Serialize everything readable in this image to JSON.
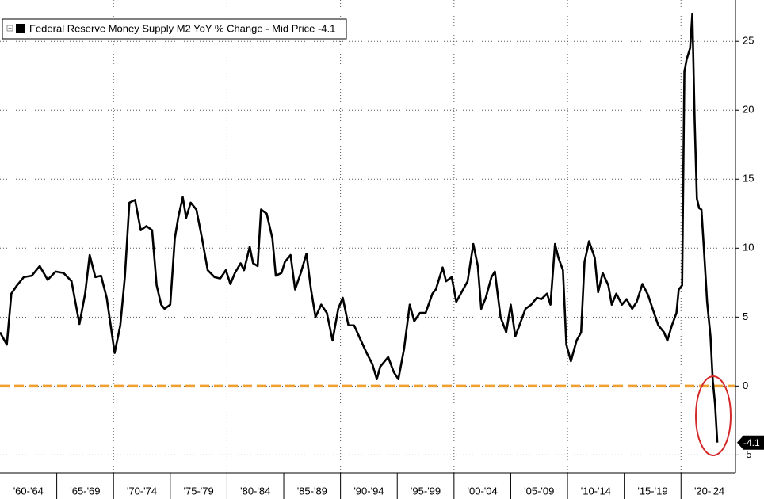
{
  "chart_data": {
    "type": "line",
    "series": [
      {
        "name": "Federal Reserve Money Supply M2 YoY % Change - Mid Price -4.1",
        "color": "#000000",
        "x": [
          1960.0,
          1960.6,
          1961.0,
          1961.5,
          1962.1,
          1962.8,
          1963.5,
          1964.2,
          1964.9,
          1965.6,
          1966.3,
          1967.0,
          1967.5,
          1967.9,
          1968.4,
          1968.9,
          1969.4,
          1970.1,
          1970.6,
          1971.0,
          1971.4,
          1971.9,
          1972.4,
          1972.9,
          1973.4,
          1973.8,
          1974.2,
          1974.5,
          1975.0,
          1975.4,
          1975.7,
          1976.1,
          1976.4,
          1976.8,
          1977.3,
          1977.8,
          1978.3,
          1978.9,
          1979.4,
          1979.9,
          1980.3,
          1980.7,
          1981.2,
          1981.5,
          1982.0,
          1982.3,
          1982.7,
          1983.0,
          1983.5,
          1984.0,
          1984.3,
          1984.8,
          1985.1,
          1985.6,
          1986.0,
          1986.5,
          1987.0,
          1987.4,
          1987.8,
          1988.3,
          1988.8,
          1989.3,
          1989.8,
          1990.2,
          1990.7,
          1991.2,
          1991.8,
          1992.3,
          1992.8,
          1993.2,
          1993.5,
          1994.2,
          1994.7,
          1995.1,
          1995.6,
          1996.1,
          1996.5,
          1997.0,
          1997.5,
          1998.1,
          1998.4,
          1999.0,
          1999.3,
          1999.8,
          2000.2,
          2000.6,
          2001.2,
          2001.7,
          2002.1,
          2002.4,
          2002.8,
          2003.3,
          2003.6,
          2004.1,
          2004.6,
          2005.0,
          2005.4,
          2005.9,
          2006.3,
          2006.8,
          2007.3,
          2007.7,
          2008.2,
          2008.5,
          2008.9,
          2009.2,
          2009.6,
          2009.9,
          2010.3,
          2010.8,
          2011.2,
          2011.5,
          2011.9,
          2012.4,
          2012.7,
          2013.1,
          2013.6,
          2013.9,
          2014.3,
          2014.8,
          2015.2,
          2015.7,
          2016.1,
          2016.6,
          2017.1,
          2017.5,
          2018.0,
          2018.5,
          2018.8,
          2019.2,
          2019.6,
          2019.8,
          2020.1,
          2020.3,
          2020.5,
          2020.8,
          2021.0,
          2021.2,
          2021.4,
          2021.6,
          2021.8,
          2022.0,
          2022.3,
          2022.6,
          2022.8,
          2023.0,
          2023.2
        ],
        "values": [
          3.9,
          3.0,
          6.7,
          7.3,
          7.9,
          8.0,
          8.7,
          7.7,
          8.3,
          8.2,
          7.6,
          4.5,
          6.7,
          9.5,
          7.9,
          8.0,
          6.4,
          2.4,
          4.4,
          7.9,
          13.3,
          13.5,
          11.3,
          11.6,
          11.3,
          7.3,
          5.9,
          5.6,
          5.9,
          10.7,
          12.2,
          13.7,
          12.2,
          13.3,
          12.8,
          10.7,
          8.4,
          7.9,
          7.8,
          8.4,
          7.4,
          8.2,
          8.9,
          8.4,
          10.1,
          8.9,
          8.7,
          12.8,
          12.5,
          10.7,
          8.0,
          8.2,
          9.0,
          9.5,
          7.0,
          8.2,
          9.6,
          7.0,
          5.0,
          5.9,
          5.3,
          3.3,
          5.6,
          6.4,
          4.4,
          4.4,
          3.3,
          2.4,
          1.6,
          0.5,
          1.4,
          2.1,
          1.0,
          0.5,
          2.7,
          5.9,
          4.7,
          5.3,
          5.3,
          6.7,
          7.0,
          8.6,
          7.6,
          7.9,
          6.1,
          6.7,
          7.6,
          10.3,
          8.7,
          5.6,
          6.4,
          7.9,
          8.3,
          5.0,
          3.9,
          5.9,
          3.6,
          4.7,
          5.6,
          5.9,
          6.4,
          6.3,
          6.7,
          5.9,
          10.3,
          9.3,
          8.4,
          3.0,
          1.8,
          3.3,
          3.9,
          9.0,
          10.5,
          9.3,
          6.8,
          8.2,
          7.3,
          5.9,
          6.7,
          5.9,
          6.3,
          5.6,
          6.1,
          7.4,
          6.6,
          5.6,
          4.4,
          3.9,
          3.3,
          4.4,
          5.3,
          7.0,
          7.3,
          22.8,
          23.7,
          24.5,
          27.0,
          19.4,
          13.6,
          12.9,
          12.8,
          10.2,
          6.1,
          3.6,
          0.4,
          -1.3,
          -4.1
        ]
      }
    ],
    "xlim": [
      1960,
      2024.8
    ],
    "xticks": [
      {
        "value": 1962.5,
        "label": "'60-'64"
      },
      {
        "value": 1967.5,
        "label": "'65-'69"
      },
      {
        "value": 1972.5,
        "label": "'70-'74"
      },
      {
        "value": 1977.5,
        "label": "'75-'79"
      },
      {
        "value": 1982.5,
        "label": "'80-'84"
      },
      {
        "value": 1987.5,
        "label": "'85-'89"
      },
      {
        "value": 1992.5,
        "label": "'90-'94"
      },
      {
        "value": 1997.5,
        "label": "'95-'99"
      },
      {
        "value": 2002.5,
        "label": "'00-'04"
      },
      {
        "value": 2007.5,
        "label": "'05-'09"
      },
      {
        "value": 2012.5,
        "label": "'10-'14"
      },
      {
        "value": 2017.5,
        "label": "'15-'19"
      },
      {
        "value": 2022.5,
        "label": "'20-'24"
      }
    ],
    "x_gridlines": [
      1970,
      1980,
      1990,
      2000,
      2010,
      2020
    ],
    "ylim": [
      -6.3,
      28
    ],
    "yticks": [
      25,
      20,
      15,
      10,
      5,
      0,
      -5
    ],
    "grid": true,
    "y_axis_side": "right",
    "reference_line": {
      "value": 0,
      "color": "#f0a030"
    },
    "legend": "top-left"
  }
}
